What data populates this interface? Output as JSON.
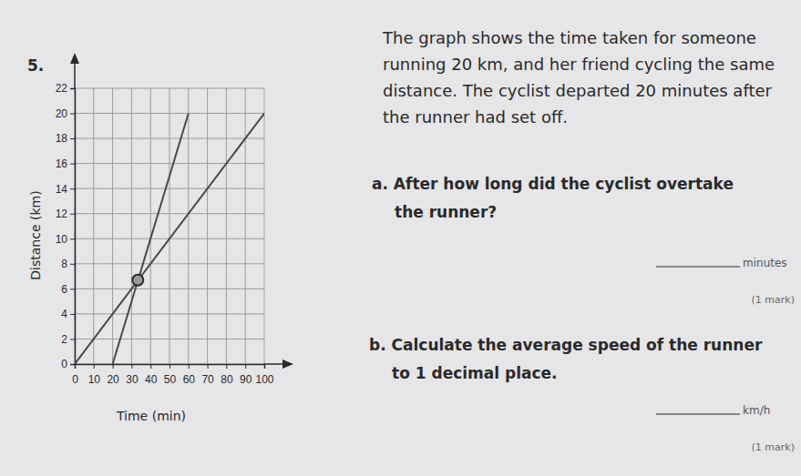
{
  "chart_data": {
    "type": "line",
    "x_label": "Time (min)",
    "y_label": "Distance (km)",
    "series": [
      {
        "x": [
          0,
          100
        ],
        "values": [
          0,
          20
        ],
        "color": "#4a4a4a"
      },
      {
        "x": [
          20,
          60
        ],
        "values": [
          0,
          20
        ],
        "color": "#4a4a4a"
      }
    ],
    "highlight": {
      "x": 33.3,
      "y": 6.7,
      "color": "#9a9a9a"
    },
    "xlim": [
      0,
      100
    ],
    "xticks": [
      0,
      10,
      20,
      30,
      40,
      50,
      60,
      70,
      80,
      90,
      100
    ],
    "ylim": [
      0,
      22
    ],
    "yticks": [
      0,
      2,
      4,
      6,
      8,
      10,
      12,
      14,
      16,
      18,
      20,
      22
    ],
    "grid": true
  },
  "page": {
    "number": "5.",
    "intro": [
      "The graph shows the time taken for someone",
      "running 20 km, and her friend cycling the same",
      "distance. The cyclist departed 20 minutes after",
      "the runner had set off."
    ],
    "questions": [
      {
        "lines": [
          "a. After how long did the cyclist overtake",
          "the runner?"
        ],
        "unit": "minutes",
        "marks": "(1 mark)"
      },
      {
        "lines": [
          "b. Calculate the average speed of the runner",
          "to 1 decimal place."
        ],
        "unit": "km/h",
        "marks": "(1 mark)"
      }
    ]
  }
}
